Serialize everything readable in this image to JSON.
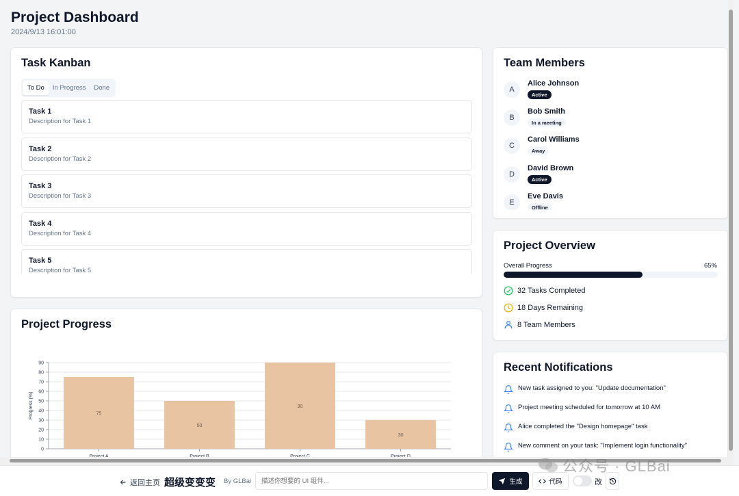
{
  "header": {
    "title": "Project Dashboard",
    "timestamp": "2024/9/13 16:01:00"
  },
  "kanban": {
    "title": "Task Kanban",
    "tabs": [
      "To Do",
      "In Progress",
      "Done"
    ],
    "active_tab": "To Do",
    "tasks": [
      {
        "title": "Task 1",
        "desc": "Description for Task 1"
      },
      {
        "title": "Task 2",
        "desc": "Description for Task 2"
      },
      {
        "title": "Task 3",
        "desc": "Description for Task 3"
      },
      {
        "title": "Task 4",
        "desc": "Description for Task 4"
      },
      {
        "title": "Task 5",
        "desc": "Description for Task 5"
      }
    ]
  },
  "team": {
    "title": "Team Members",
    "members": [
      {
        "initial": "A",
        "name": "Alice Johnson",
        "status": "Active",
        "style": "dark"
      },
      {
        "initial": "B",
        "name": "Bob Smith",
        "status": "In a meeting",
        "style": "light"
      },
      {
        "initial": "C",
        "name": "Carol Williams",
        "status": "Away",
        "style": "light"
      },
      {
        "initial": "D",
        "name": "David Brown",
        "status": "Active",
        "style": "dark"
      },
      {
        "initial": "E",
        "name": "Eve Davis",
        "status": "Offline",
        "style": "light"
      }
    ]
  },
  "overview": {
    "title": "Project Overview",
    "progress_label": "Overall Progress",
    "progress_text": "65%",
    "progress_value": 0.65,
    "stats": [
      {
        "icon": "check-circle-icon",
        "text": "32 Tasks Completed",
        "color": "#22c55e"
      },
      {
        "icon": "clock-icon",
        "text": "18 Days Remaining",
        "color": "#eab308"
      },
      {
        "icon": "user-icon",
        "text": "8 Team Members",
        "color": "#3b82f6"
      }
    ]
  },
  "notifications": {
    "title": "Recent Notifications",
    "items": [
      "New task assigned to you: \"Update documentation\"",
      "Project meeting scheduled for tomorrow at 10 AM",
      "Alice completed the \"Design homepage\" task",
      "New comment on your task: \"Implement login functionality\""
    ]
  },
  "progress_chart": {
    "title": "Project Progress"
  },
  "chart_data": {
    "type": "bar",
    "categories": [
      "Project A",
      "Project B",
      "Project C",
      "Project D"
    ],
    "values": [
      75,
      50,
      90,
      30
    ],
    "ylabel": "Progress (%)",
    "xlabel": "",
    "ylim": [
      0,
      90
    ],
    "yticks": [
      0,
      10,
      20,
      30,
      40,
      50,
      60,
      70,
      80,
      90
    ],
    "bar_color": "#e8c4a2",
    "data_labels": true,
    "grid": true
  },
  "bottom_bar": {
    "back_label": "返回主页",
    "brand": "超级变变变",
    "by": "By GLBai",
    "prompt_placeholder": "描述你想要的 UI 组件...",
    "generate_label": "生成",
    "code_label": "代码",
    "toggle_label": "改"
  },
  "watermark": "公众号 · GLBai"
}
